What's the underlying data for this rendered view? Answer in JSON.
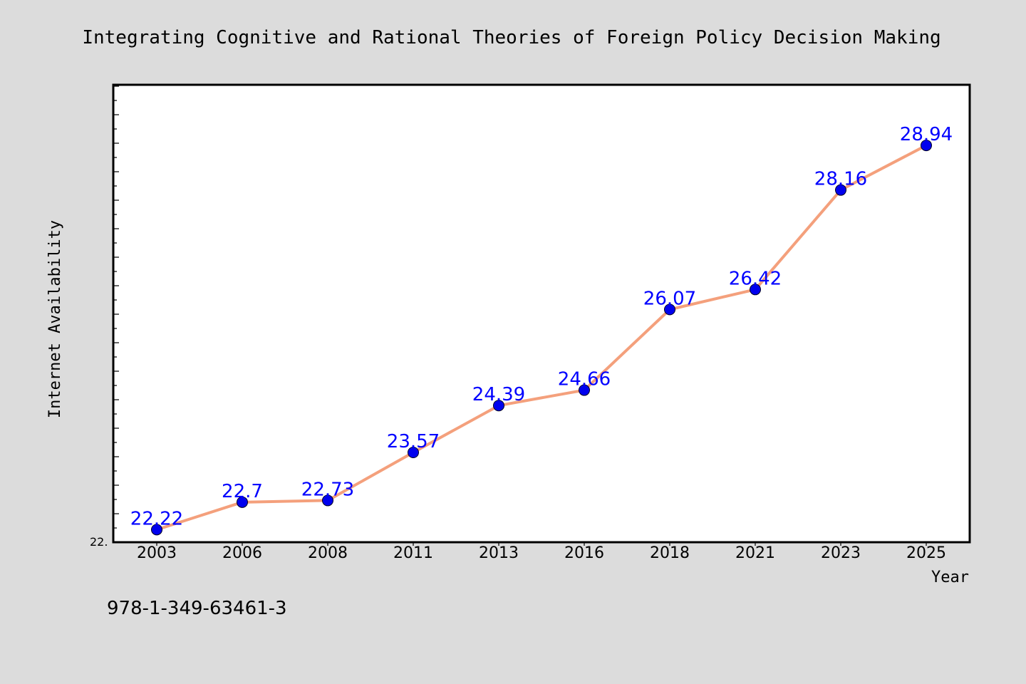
{
  "chart_data": {
    "type": "line",
    "title": "Integrating Cognitive and Rational Theories of Foreign Policy Decision Making",
    "xlabel": "Year",
    "ylabel": "Internet Availability",
    "categories": [
      "2003",
      "2006",
      "2008",
      "2011",
      "2013",
      "2016",
      "2018",
      "2021",
      "2023",
      "2025"
    ],
    "series": [
      {
        "values": [
          22.22,
          22.7,
          22.73,
          23.57,
          24.39,
          24.66,
          26.07,
          26.42,
          28.16,
          28.94
        ],
        "data_labels": [
          "22.22",
          "22.7",
          "22.73",
          "23.57",
          "24.39",
          "24.66",
          "26.07",
          "26.42",
          "28.16",
          "28.94"
        ]
      }
    ],
    "ylim": [
      22,
      30
    ],
    "y_tick_labels": [
      "22."
    ],
    "grid": false,
    "legend": "none",
    "colors": {
      "line": "#f4a07c",
      "marker": "#0000ee",
      "data_label": "#0000ff",
      "background": "#dcdcdc",
      "plot_background": "#ffffff"
    }
  },
  "footer": {
    "isbn": "978-1-349-63461-3"
  }
}
